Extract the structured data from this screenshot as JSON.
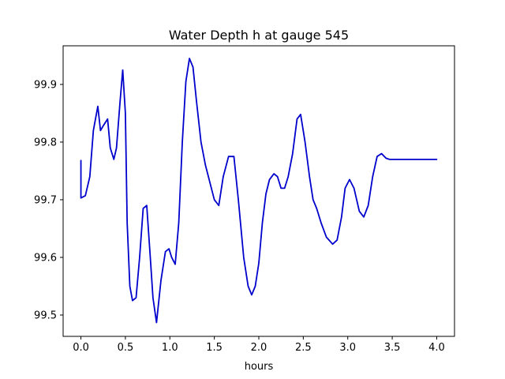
{
  "chart_data": {
    "type": "line",
    "title": "Water Depth h at gauge 545",
    "xlabel": "hours",
    "ylabel": "",
    "xlim": [
      -0.2,
      4.2
    ],
    "ylim": [
      99.463,
      99.967
    ],
    "xticks": [
      0.0,
      0.5,
      1.0,
      1.5,
      2.0,
      2.5,
      3.0,
      3.5,
      4.0
    ],
    "xtick_labels": [
      "0.0",
      "0.5",
      "1.0",
      "1.5",
      "2.0",
      "2.5",
      "3.0",
      "3.5",
      "4.0"
    ],
    "yticks": [
      99.5,
      99.6,
      99.7,
      99.8,
      99.9
    ],
    "ytick_labels": [
      "99.5",
      "99.6",
      "99.7",
      "99.8",
      "99.9"
    ],
    "grid": false,
    "legend": "none",
    "series": [
      {
        "color": "#0000cc",
        "x": [
          0.0,
          0.0,
          0.05,
          0.1,
          0.14,
          0.19,
          0.22,
          0.25,
          0.3,
          0.33,
          0.37,
          0.4,
          0.44,
          0.47,
          0.5,
          0.52,
          0.55,
          0.58,
          0.62,
          0.66,
          0.7,
          0.74,
          0.78,
          0.81,
          0.85,
          0.9,
          0.95,
          0.99,
          1.02,
          1.06,
          1.1,
          1.14,
          1.18,
          1.22,
          1.26,
          1.3,
          1.35,
          1.4,
          1.45,
          1.5,
          1.55,
          1.6,
          1.66,
          1.72,
          1.77,
          1.83,
          1.88,
          1.92,
          1.96,
          2.0,
          2.04,
          2.08,
          2.12,
          2.17,
          2.21,
          2.25,
          2.29,
          2.33,
          2.38,
          2.43,
          2.47,
          2.52,
          2.57,
          2.61,
          2.65,
          2.7,
          2.76,
          2.83,
          2.88,
          2.93,
          2.97,
          3.02,
          3.07,
          3.13,
          3.18,
          3.23,
          3.28,
          3.33,
          3.38,
          3.43,
          3.47,
          3.52,
          3.57,
          3.62,
          3.67,
          3.72,
          3.77,
          3.82,
          3.87,
          3.92,
          3.97,
          4.0
        ],
        "y": [
          99.768,
          99.703,
          99.707,
          99.74,
          99.82,
          99.862,
          99.82,
          99.828,
          99.84,
          99.79,
          99.77,
          99.79,
          99.87,
          99.925,
          99.85,
          99.66,
          99.55,
          99.525,
          99.53,
          99.6,
          99.685,
          99.69,
          99.6,
          99.53,
          99.487,
          99.56,
          99.61,
          99.615,
          99.6,
          99.588,
          99.66,
          99.8,
          99.905,
          99.945,
          99.93,
          99.87,
          99.8,
          99.76,
          99.73,
          99.7,
          99.69,
          99.74,
          99.775,
          99.775,
          99.7,
          99.6,
          99.55,
          99.535,
          99.55,
          99.59,
          99.66,
          99.71,
          99.735,
          99.745,
          99.74,
          99.72,
          99.72,
          99.74,
          99.78,
          99.84,
          99.848,
          99.8,
          99.74,
          99.7,
          99.685,
          99.66,
          99.635,
          99.623,
          99.63,
          99.67,
          99.72,
          99.735,
          99.72,
          99.68,
          99.67,
          99.69,
          99.74,
          99.775,
          99.78,
          99.772,
          99.77,
          99.77,
          99.77,
          99.77,
          99.77,
          99.77,
          99.77,
          99.77,
          99.77,
          99.77,
          99.77,
          99.77
        ]
      }
    ]
  }
}
